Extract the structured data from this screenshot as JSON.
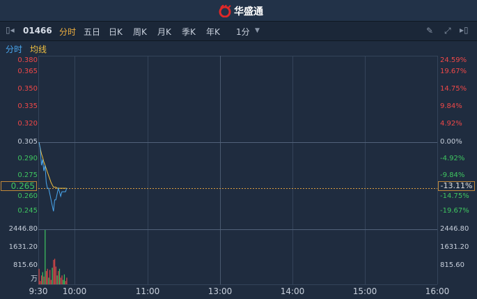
{
  "header": {
    "brand": "华盛通",
    "brand_color": "#e02828"
  },
  "toolbar": {
    "code": "01466",
    "tabs": [
      "分时",
      "五日",
      "日K",
      "周K",
      "月K",
      "季K",
      "年K"
    ],
    "active_tab": "分时",
    "interval": "1分",
    "icons": [
      "collapse-left-icon",
      "pencil-icon",
      "fullscreen-icon",
      "collapse-right-icon"
    ]
  },
  "legend": {
    "price": "分时",
    "avg": "均线"
  },
  "axes": {
    "price_labels": [
      "0.380",
      "0.365",
      "0.350",
      "0.335",
      "0.320",
      "0.305",
      "0.290",
      "0.275",
      "0.260",
      "0.245"
    ],
    "pct_labels": [
      "24.59%",
      "19.67%",
      "14.75%",
      "9.84%",
      "4.92%",
      "0.00%",
      "-4.92%",
      "-9.84%",
      "-14.75%",
      "-19.67%"
    ],
    "vol_labels": [
      "2446.80",
      "1631.20",
      "815.60"
    ],
    "vol_unit": "万",
    "time_labels": [
      "9:30",
      "10:00",
      "11:00",
      "13:00",
      "14:00",
      "15:00",
      "16:00"
    ]
  },
  "current": {
    "price": "0.265",
    "pct": "-13.11%"
  },
  "chart_data": {
    "type": "line",
    "prev_close": 0.305,
    "price": [
      0.305,
      0.3,
      0.285,
      0.29,
      0.28,
      0.285,
      0.27,
      0.265,
      0.265,
      0.26,
      0.255,
      0.25,
      0.245,
      0.255,
      0.255,
      0.26,
      0.265,
      0.262,
      0.258,
      0.262,
      0.262,
      0.262,
      0.262,
      0.265
    ],
    "avg": [
      0.305,
      0.3,
      0.295,
      0.292,
      0.288,
      0.285,
      0.282,
      0.279,
      0.276,
      0.273,
      0.27,
      0.268,
      0.266,
      0.266,
      0.266,
      0.265,
      0.265,
      0.265,
      0.265,
      0.265,
      0.265,
      0.265,
      0.265,
      0.265
    ],
    "volume": [
      700,
      150,
      400,
      550,
      350,
      2446.8,
      600,
      700,
      300,
      650,
      200,
      750,
      1100,
      1150,
      800,
      400,
      600,
      700,
      300,
      400,
      200,
      450,
      150,
      300
    ],
    "volume_up": [
      1,
      1,
      1,
      0,
      1,
      0,
      1,
      1,
      0,
      1,
      1,
      0,
      1,
      1,
      1,
      0,
      1,
      0,
      1,
      1,
      0,
      0,
      1,
      1
    ],
    "colors": {
      "price": "#4aa8f0",
      "avg": "#f0c040",
      "up": "#e04848",
      "down": "#3fc660"
    }
  }
}
